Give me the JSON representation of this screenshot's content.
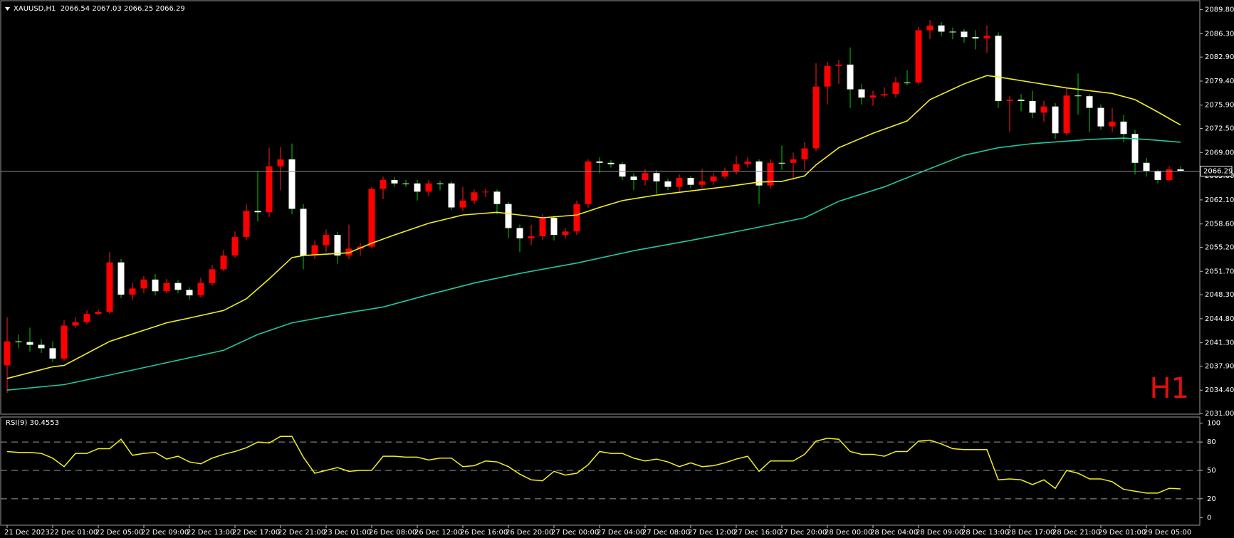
{
  "chart_data": [
    {
      "type": "candlestick",
      "title": "XAUUSD,H1  2066.54 2067.03 2066.25 2066.29",
      "annotation": "H1",
      "categories": [
        "21 Dec 2023",
        null,
        null,
        null,
        "22 Dec 01:00",
        null,
        null,
        null,
        "22 Dec 05:00",
        null,
        null,
        null,
        "22 Dec 09:00",
        null,
        null,
        null,
        "22 Dec 13:00",
        null,
        null,
        null,
        "22 Dec 17:00",
        null,
        null,
        null,
        "22 Dec 21:00",
        null,
        null,
        null,
        "23 Dec 01:00",
        null,
        null,
        null,
        "26 Dec 08:00",
        null,
        null,
        null,
        "26 Dec 12:00",
        null,
        null,
        null,
        "26 Dec 16:00",
        null,
        null,
        null,
        "26 Dec 20:00",
        null,
        null,
        null,
        "27 Dec 00:00",
        null,
        null,
        null,
        "27 Dec 04:00",
        null,
        null,
        null,
        "27 Dec 08:00",
        null,
        null,
        null,
        "27 Dec 12:00",
        null,
        null,
        null,
        "27 Dec 16:00",
        null,
        null,
        null,
        "27 Dec 20:00",
        null,
        null,
        null,
        "28 Dec 00:00",
        null,
        null,
        null,
        "28 Dec 04:00",
        null,
        null,
        null,
        "28 Dec 09:00",
        null,
        null,
        null,
        "28 Dec 13:00",
        null,
        null,
        null,
        "28 Dec 17:00",
        null,
        null,
        null,
        "28 Dec 21:00",
        null,
        null,
        null,
        "29 Dec 01:00",
        null,
        null,
        null,
        "29 Dec 05:00",
        null,
        null,
        null
      ],
      "open": [
        2038.0,
        2041.5,
        2041.4,
        2041.0,
        2040.5,
        2039.0,
        2043.8,
        2044.3,
        2045.5,
        2045.8,
        2053.0,
        2048.3,
        2049.2,
        2050.5,
        2048.8,
        2050.0,
        2049.0,
        2048.2,
        2050.0,
        2052.0,
        2054.0,
        2056.7,
        2060.5,
        2060.3,
        2067.0,
        2068.0,
        2060.8,
        2054.0,
        2055.5,
        2057.0,
        2054.0,
        2055.0,
        2055.3,
        2063.7,
        2065.0,
        2064.5,
        2064.5,
        2063.3,
        2064.5,
        2064.5,
        2061.0,
        2062.0,
        2063.2,
        2063.3,
        2061.5,
        2058.0,
        2056.5,
        2056.8,
        2059.5,
        2057.0,
        2057.5,
        2061.5,
        2067.7,
        2067.5,
        2067.3,
        2065.5,
        2065.0,
        2066.0,
        2064.8,
        2064.0,
        2065.3,
        2064.3,
        2064.8,
        2065.5,
        2066.3,
        2067.3,
        2067.7,
        2064.2,
        2067.5,
        2067.5,
        2068.0,
        2069.6,
        2078.6,
        2081.6,
        2081.8,
        2078.2,
        2077.0,
        2077.3,
        2077.5,
        2079.2,
        2079.2,
        2086.8,
        2087.5,
        2086.6,
        2086.6,
        2085.8,
        2085.6,
        2086.0,
        2076.5,
        2076.7,
        2076.5,
        2074.8,
        2075.7,
        2071.8,
        2077.3,
        2077.2,
        2075.5,
        2072.8,
        2073.5,
        2071.7,
        2067.5,
        2066.3,
        2065.0,
        2066.54
      ],
      "high": [
        2045.0,
        2042.5,
        2043.5,
        2041.8,
        2041.5,
        2044.6,
        2045.0,
        2046.0,
        2046.2,
        2054.5,
        2053.5,
        2050.0,
        2051.0,
        2051.3,
        2050.6,
        2050.4,
        2049.4,
        2050.8,
        2052.6,
        2054.8,
        2057.5,
        2061.5,
        2066.3,
        2069.7,
        2069.8,
        2070.3,
        2061.5,
        2056.2,
        2057.8,
        2057.4,
        2058.5,
        2055.8,
        2064.0,
        2065.5,
        2065.4,
        2065.0,
        2065.0,
        2065.0,
        2064.9,
        2064.8,
        2064.0,
        2063.6,
        2063.7,
        2063.6,
        2061.8,
        2058.5,
        2058.5,
        2060.0,
        2059.8,
        2058.0,
        2062.0,
        2068.0,
        2068.3,
        2067.9,
        2067.6,
        2066.0,
        2066.6,
        2066.4,
        2065.2,
        2065.8,
        2065.6,
        2066.6,
        2066.0,
        2066.8,
        2068.5,
        2068.3,
        2068.0,
        2068.0,
        2070.0,
        2069.0,
        2070.5,
        2082.0,
        2082.2,
        2082.5,
        2084.3,
        2079.0,
        2078.0,
        2078.5,
        2080.0,
        2081.0,
        2087.3,
        2088.3,
        2088.0,
        2087.2,
        2087.0,
        2086.8,
        2087.5,
        2086.5,
        2077.2,
        2077.5,
        2078.0,
        2076.5,
        2076.2,
        2078.5,
        2080.5,
        2077.5,
        2076.0,
        2075.5,
        2074.5,
        2072.3,
        2068.2,
        2066.5,
        2067.0,
        2067.03
      ],
      "low": [
        2034.0,
        2040.5,
        2040.0,
        2039.8,
        2038.5,
        2038.7,
        2043.5,
        2044.0,
        2045.3,
        2045.5,
        2047.8,
        2047.5,
        2048.5,
        2048.2,
        2048.5,
        2048.5,
        2047.6,
        2047.9,
        2049.6,
        2051.7,
        2053.7,
        2056.2,
        2059.0,
        2059.6,
        2063.5,
        2060.0,
        2052.0,
        2053.5,
        2054.5,
        2052.8,
        2053.5,
        2054.0,
        2055.0,
        2062.2,
        2064.0,
        2064.0,
        2062.0,
        2062.7,
        2063.5,
        2060.6,
        2060.5,
        2061.5,
        2062.5,
        2060.0,
        2056.5,
        2054.5,
        2055.5,
        2056.3,
        2056.2,
        2056.5,
        2057.0,
        2061.0,
        2066.0,
        2066.8,
        2065.0,
        2063.5,
        2064.2,
        2063.0,
        2063.5,
        2063.2,
        2063.8,
        2063.8,
        2064.3,
        2065.2,
        2065.8,
        2066.8,
        2061.5,
        2063.8,
        2066.5,
        2065.0,
        2066.5,
        2069.2,
        2076.0,
        2079.0,
        2075.5,
        2076.0,
        2075.8,
        2077.0,
        2077.0,
        2078.8,
        2078.9,
        2085.5,
        2086.0,
        2085.5,
        2085.0,
        2084.0,
        2083.5,
        2075.5,
        2072.0,
        2075.0,
        2074.0,
        2073.5,
        2071.0,
        2071.5,
        2074.5,
        2072.0,
        2072.3,
        2072.0,
        2070.5,
        2065.8,
        2065.5,
        2064.5,
        2064.8,
        2066.25
      ],
      "close": [
        2041.5,
        2041.4,
        2041.0,
        2040.5,
        2039.0,
        2043.8,
        2044.3,
        2045.5,
        2045.8,
        2053.0,
        2048.3,
        2049.2,
        2050.5,
        2048.8,
        2050.0,
        2049.0,
        2048.2,
        2050.0,
        2052.0,
        2054.0,
        2056.7,
        2060.5,
        2060.3,
        2067.0,
        2068.0,
        2060.8,
        2054.0,
        2055.5,
        2057.0,
        2054.0,
        2055.0,
        2055.3,
        2063.7,
        2065.0,
        2064.5,
        2064.5,
        2063.3,
        2064.5,
        2064.5,
        2061.0,
        2062.0,
        2063.2,
        2063.3,
        2061.5,
        2058.0,
        2056.5,
        2056.8,
        2059.5,
        2057.0,
        2057.5,
        2061.5,
        2067.7,
        2067.5,
        2067.3,
        2065.5,
        2065.0,
        2066.0,
        2064.8,
        2064.0,
        2065.3,
        2064.3,
        2064.8,
        2065.5,
        2066.3,
        2067.3,
        2067.7,
        2064.2,
        2067.5,
        2067.5,
        2068.0,
        2069.6,
        2078.6,
        2081.6,
        2081.8,
        2078.2,
        2077.0,
        2077.3,
        2077.5,
        2079.2,
        2079.2,
        2086.8,
        2087.5,
        2086.6,
        2086.6,
        2085.8,
        2085.6,
        2086.0,
        2076.5,
        2076.7,
        2076.5,
        2074.8,
        2075.7,
        2071.8,
        2077.3,
        2077.2,
        2075.5,
        2072.8,
        2073.5,
        2071.7,
        2067.5,
        2066.3,
        2065.0,
        2066.54,
        2066.29
      ],
      "up_color": "#ff0000",
      "down_color": "#ffffff",
      "wick_up_color": "#ff2020",
      "wick_down_color": "#00d000",
      "lines": [
        {
          "color": "#f0f020",
          "x": [
            0,
            4,
            5,
            9,
            14,
            16,
            19,
            21,
            23,
            25,
            26,
            30,
            32,
            34,
            37,
            40,
            43,
            45,
            47,
            50,
            52,
            54,
            57,
            60,
            63,
            66,
            68,
            70,
            71,
            73,
            76,
            79,
            81,
            84,
            86,
            87,
            90,
            93,
            95,
            97,
            99,
            101,
            103
          ],
          "values": [
            2036.1,
            2037.8,
            2038.0,
            2041.5,
            2044.2,
            2044.9,
            2046.0,
            2047.7,
            2050.6,
            2053.7,
            2054.0,
            2054.4,
            2055.8,
            2057.0,
            2058.7,
            2059.9,
            2060.3,
            2059.9,
            2059.5,
            2059.9,
            2061.0,
            2062.0,
            2062.8,
            2063.4,
            2064.0,
            2064.7,
            2064.8,
            2065.6,
            2067.2,
            2069.7,
            2071.8,
            2073.6,
            2076.7,
            2079.0,
            2080.2,
            2080.0,
            2079.2,
            2078.4,
            2078.0,
            2077.6,
            2076.7,
            2074.9,
            2073.0
          ]
        },
        {
          "color": "#20c8a0",
          "x": [
            0,
            5,
            9,
            14,
            19,
            22,
            25,
            30,
            33,
            37,
            41,
            45,
            50,
            55,
            60,
            65,
            70,
            73,
            77,
            80,
            84,
            87,
            90,
            95,
            98,
            100,
            103
          ],
          "values": [
            2034.4,
            2035.2,
            2036.6,
            2038.4,
            2040.2,
            2042.5,
            2044.2,
            2045.7,
            2046.5,
            2048.3,
            2050.0,
            2051.4,
            2052.9,
            2054.7,
            2056.2,
            2057.8,
            2059.5,
            2061.9,
            2064.0,
            2066.0,
            2068.6,
            2069.7,
            2070.3,
            2070.9,
            2071.1,
            2070.9,
            2070.5
          ]
        }
      ],
      "current_price": 2066.29,
      "ylim": [
        2030.9,
        2091.0
      ],
      "yticks": [
        {
          "value": 2031.0,
          "label": "2031.00"
        },
        {
          "value": 2034.4,
          "label": "2034.40"
        },
        {
          "value": 2037.9,
          "label": "2037.90"
        },
        {
          "value": 2041.3,
          "label": "2041.30"
        },
        {
          "value": 2044.8,
          "label": "2044.80"
        },
        {
          "value": 2048.3,
          "label": "2048.30"
        },
        {
          "value": 2051.7,
          "label": "2051.70"
        },
        {
          "value": 2055.2,
          "label": "2055.20"
        },
        {
          "value": 2058.6,
          "label": "2058.60"
        },
        {
          "value": 2062.1,
          "label": "2062.10"
        },
        {
          "value": 2065.6,
          "label": "2065.60"
        },
        {
          "value": 2069.0,
          "label": "2069.00"
        },
        {
          "value": 2072.5,
          "label": "2072.50"
        },
        {
          "value": 2075.9,
          "label": "2075.90"
        },
        {
          "value": 2079.4,
          "label": "2079.40"
        },
        {
          "value": 2082.9,
          "label": "2082.90"
        },
        {
          "value": 2086.3,
          "label": "2086.30"
        },
        {
          "value": 2089.8,
          "label": "2089.80"
        }
      ]
    },
    {
      "type": "line",
      "title": "RSI(9) 30.4553",
      "color": "#f0f020",
      "values": [
        70,
        69,
        69,
        68,
        63,
        54,
        68,
        68,
        73,
        73,
        83,
        66,
        68,
        69,
        62,
        65,
        59,
        57,
        63,
        67,
        70,
        74,
        80,
        79,
        86,
        86,
        64,
        47,
        50,
        53,
        49,
        50,
        50,
        65,
        65,
        64,
        64,
        61,
        63,
        63,
        54,
        55,
        60,
        59,
        54,
        46,
        40,
        39,
        49,
        45,
        47,
        56,
        70,
        68,
        68,
        63,
        60,
        62,
        59,
        54,
        58,
        54,
        55,
        58,
        62,
        65,
        49,
        60,
        60,
        60,
        67,
        81,
        84,
        83,
        70,
        67,
        67,
        65,
        70,
        70,
        81,
        82,
        78,
        73,
        72,
        72,
        72,
        40,
        41,
        40,
        35,
        40,
        31,
        50,
        47,
        41,
        41,
        38,
        30,
        28,
        26,
        26,
        31,
        30.4553
      ],
      "ylim": [
        -8,
        105
      ],
      "yticks": [
        100,
        80,
        50,
        20,
        0
      ],
      "levels": [
        80,
        50,
        20
      ]
    }
  ]
}
